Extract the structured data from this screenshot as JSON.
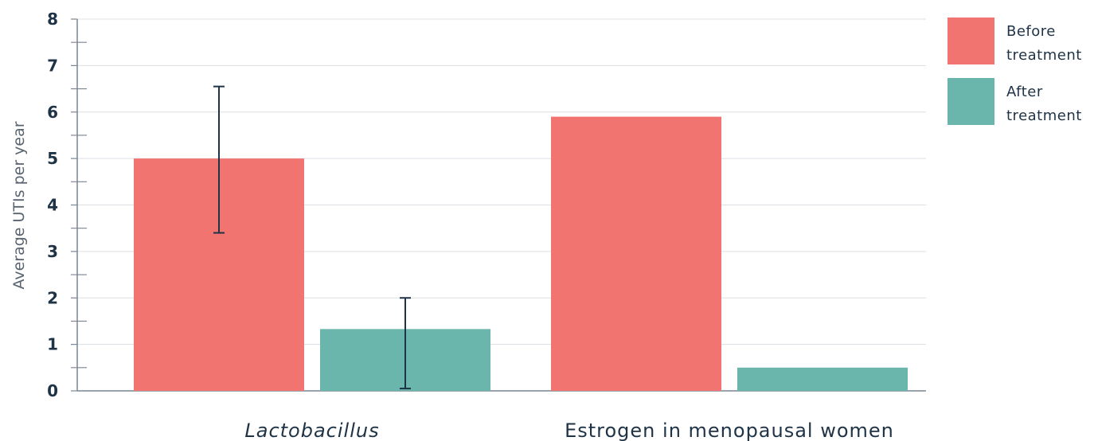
{
  "chart_data": {
    "type": "bar",
    "categories": [
      "Lactobacillus",
      "Estrogen in menopausal women"
    ],
    "series": [
      {
        "name": "Before treatment",
        "legend_lines": [
          "Before",
          "treatment"
        ],
        "color": "#f27471",
        "values": [
          5.0,
          5.9
        ],
        "error": [
          [
            3.4,
            6.55
          ],
          null
        ]
      },
      {
        "name": "After treatment",
        "legend_lines": [
          "After",
          "treatment"
        ],
        "color": "#6ab6ad",
        "values": [
          1.33,
          0.5
        ],
        "error": [
          [
            0.05,
            2.0
          ],
          null
        ]
      }
    ],
    "ylabel": "Average UTIs per year",
    "xlabel": "",
    "ylim": [
      0,
      8
    ],
    "yticks": [
      "0",
      "1",
      "2",
      "3",
      "4",
      "5",
      "6",
      "7",
      "8"
    ],
    "grid": true,
    "legend_position": "top-right"
  }
}
